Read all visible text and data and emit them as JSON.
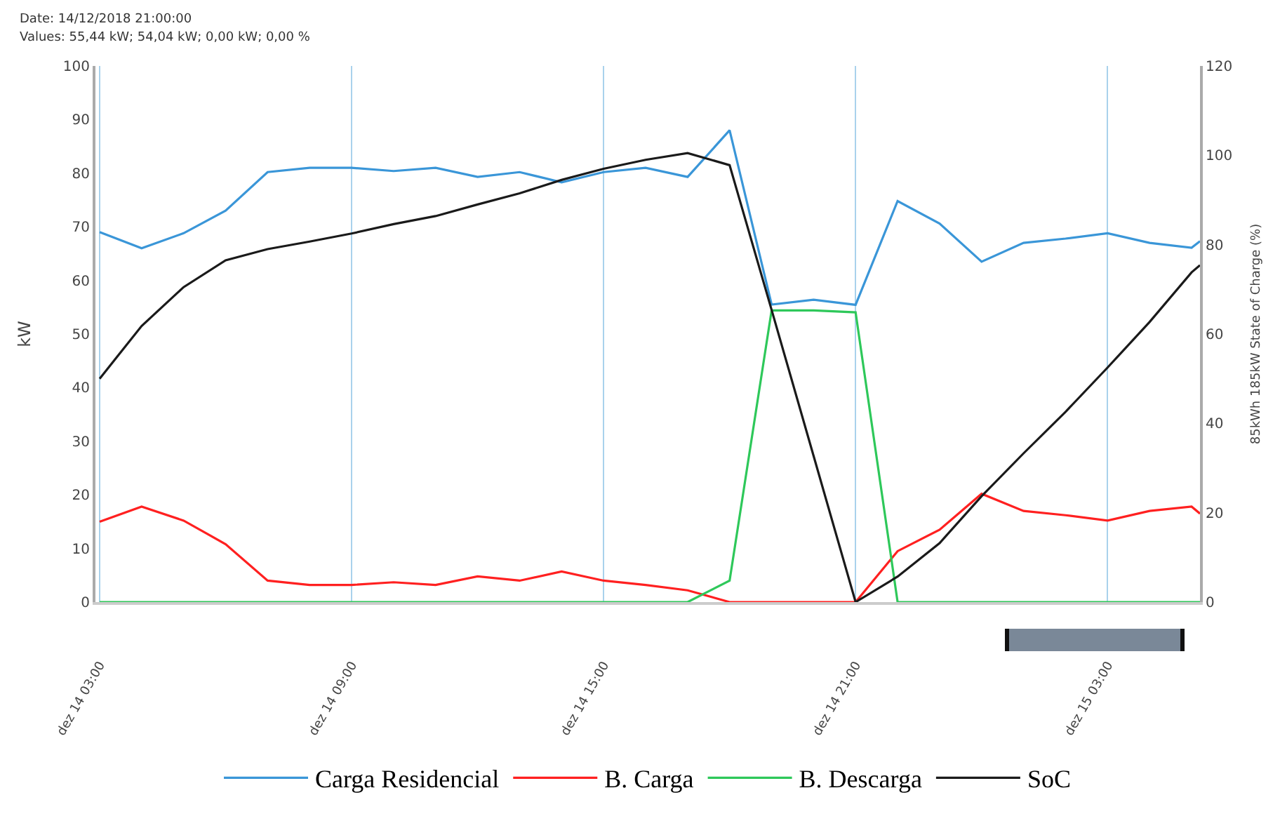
{
  "chart_data": {
    "type": "line",
    "x": [
      "2018-12-14T03:00",
      "2018-12-14T04:00",
      "2018-12-14T05:00",
      "2018-12-14T06:00",
      "2018-12-14T07:00",
      "2018-12-14T08:00",
      "2018-12-14T09:00",
      "2018-12-14T10:00",
      "2018-12-14T11:00",
      "2018-12-14T12:00",
      "2018-12-14T13:00",
      "2018-12-14T14:00",
      "2018-12-14T15:00",
      "2018-12-14T16:00",
      "2018-12-14T17:00",
      "2018-12-14T18:00",
      "2018-12-14T19:00",
      "2018-12-14T20:00",
      "2018-12-14T21:00",
      "2018-12-14T22:00",
      "2018-12-14T23:00",
      "2018-12-15T00:00",
      "2018-12-15T01:00",
      "2018-12-15T02:00",
      "2018-12-15T03:00",
      "2018-12-15T04:00",
      "2018-12-15T05:00",
      "2018-12-15T05:12"
    ],
    "series": [
      {
        "name": "Carga Residencial",
        "color": "#3a96d8",
        "values": [
          69,
          66,
          68.8,
          73,
          80.2,
          81,
          81,
          80.4,
          81,
          79.3,
          80.2,
          78.3,
          80.2,
          81,
          79.3,
          88,
          55.5,
          56.4,
          55.44,
          74.8,
          70.6,
          63.5,
          67,
          67.8,
          68.8,
          67,
          66.1,
          67.3
        ]
      },
      {
        "name": "B. Carga",
        "color": "#ff2020",
        "values": [
          15,
          17.8,
          15.2,
          10.8,
          4,
          3.2,
          3.2,
          3.7,
          3.2,
          4.8,
          4,
          5.7,
          4,
          3.2,
          2.2,
          0,
          0,
          0,
          0,
          9.5,
          13.5,
          20.2,
          17,
          16.2,
          15.2,
          17,
          17.8,
          16.5
        ]
      },
      {
        "name": "B. Descarga",
        "color": "#2ec85a",
        "values": [
          0,
          0,
          0,
          0,
          0,
          0,
          0,
          0,
          0,
          0,
          0,
          0,
          0,
          0,
          0,
          4,
          54.4,
          54.4,
          54.04,
          0,
          0,
          0,
          0,
          0,
          0,
          0,
          0,
          0
        ]
      },
      {
        "name": "SoC",
        "color": "#1a1a1a",
        "axis": "y2",
        "values": [
          50,
          61.8,
          70.5,
          76.5,
          79,
          80.7,
          82.5,
          84.6,
          86.4,
          89,
          91.5,
          94.5,
          97,
          99,
          100.5,
          97.8,
          65.4,
          32.7,
          0,
          5.7,
          13.2,
          23.7,
          33.3,
          42.6,
          52.5,
          62.7,
          73.8,
          75.4
        ]
      }
    ],
    "ylabel": "kW",
    "y2label": "85kWh 185kW State of Charge (%)",
    "annotations": [
      "Date:  14/12/2018 21:00:00",
      "Values:  55,44 kW; 54,04 kW; 0,00 kW; 0,00 %"
    ],
    "xlim": [
      "2018-12-14T02:54",
      "2018-12-15T05:12"
    ],
    "xticks": [
      {
        "value": "2018-12-14T03:00",
        "label": "dez 14 03:00"
      },
      {
        "value": "2018-12-14T09:00",
        "label": "dez 14 09:00"
      },
      {
        "value": "2018-12-14T15:00",
        "label": "dez 14 15:00"
      },
      {
        "value": "2018-12-14T21:00",
        "label": "dez 14 21:00"
      },
      {
        "value": "2018-12-15T03:00",
        "label": "dez 15 03:00"
      }
    ],
    "ylim": [
      0,
      100
    ],
    "yticks": [
      0,
      10,
      20,
      30,
      40,
      50,
      60,
      70,
      80,
      90,
      100
    ],
    "y2lim": [
      0,
      120
    ],
    "y2ticks": [
      0,
      20,
      40,
      60,
      80,
      100,
      120
    ],
    "grid": "x",
    "legend": "bottom",
    "marker": "none",
    "line_style": "solid"
  }
}
